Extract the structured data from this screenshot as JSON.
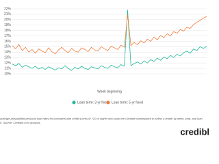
{
  "chart_data": {
    "type": "line",
    "x_label": "Week beginning",
    "categories": [
      null,
      null,
      null,
      null,
      null,
      null,
      null,
      null,
      null,
      null,
      null,
      null,
      null,
      null,
      null,
      null,
      null,
      null,
      null,
      null,
      null,
      null,
      null,
      null,
      null,
      null,
      null,
      null,
      null,
      null,
      null,
      null,
      null,
      null,
      null,
      null,
      null,
      null,
      null,
      null,
      null,
      null,
      null,
      null,
      null,
      null,
      null,
      null,
      null,
      null,
      null,
      null,
      null,
      null,
      null,
      null,
      null,
      null,
      null,
      null
    ],
    "series": [
      {
        "name": "Loan term: 3-yr fixed",
        "color": "#1fb89a",
        "values": [
          11.8,
          11.5,
          11.9,
          11.2,
          11.6,
          11.3,
          11.0,
          11.4,
          10.9,
          11.2,
          10.8,
          11.3,
          11.0,
          10.7,
          11.1,
          10.9,
          11.5,
          11.0,
          10.6,
          11.2,
          10.9,
          11.4,
          11.0,
          10.8,
          11.3,
          11.1,
          10.9,
          11.5,
          11.2,
          11.0,
          11.6,
          11.3,
          11.1,
          11.7,
          11.4,
          21.8,
          11.5,
          11.9,
          12.2,
          11.8,
          12.4,
          12.0,
          12.6,
          12.3,
          12.9,
          12.5,
          13.1,
          12.8,
          13.4,
          13.0,
          13.6,
          13.3,
          13.9,
          14.2,
          13.8,
          14.6,
          14.3,
          15.0,
          14.7,
          15.1
        ]
      },
      {
        "name": "Loan term: 5-yr fixed",
        "color": "#f07a3a",
        "values": [
          15.2,
          14.6,
          15.4,
          14.3,
          14.9,
          14.0,
          14.5,
          13.8,
          14.6,
          14.2,
          13.9,
          14.8,
          14.1,
          13.7,
          14.4,
          14.9,
          14.3,
          13.9,
          14.7,
          14.2,
          14.0,
          14.8,
          14.5,
          14.1,
          14.9,
          14.4,
          14.2,
          15.0,
          14.6,
          14.3,
          15.1,
          14.8,
          14.5,
          15.3,
          14.9,
          20.9,
          15.2,
          15.8,
          15.4,
          16.1,
          15.7,
          16.4,
          16.0,
          16.8,
          16.3,
          17.1,
          16.7,
          17.4,
          17.0,
          17.8,
          17.5,
          18.2,
          17.9,
          18.6,
          18.4,
          19.1,
          19.5,
          19.9,
          20.3,
          20.6
        ]
      }
    ],
    "ylim": [
      10,
      22
    ],
    "yticks": [
      {
        "value": 10,
        "label": "10%"
      },
      {
        "value": 11,
        "label": "11%"
      },
      {
        "value": 12,
        "label": "12%"
      },
      {
        "value": 13,
        "label": "13%"
      },
      {
        "value": 14,
        "label": "14%"
      },
      {
        "value": 15,
        "label": "15%"
      },
      {
        "value": 16,
        "label": "16%"
      },
      {
        "value": 17,
        "label": "17%"
      },
      {
        "value": 18,
        "label": "18%"
      },
      {
        "value": 19,
        "label": "19%"
      },
      {
        "value": 20,
        "label": "20%"
      },
      {
        "value": 21,
        "label": "21%"
      },
      {
        "value": 22,
        "label": "22%"
      }
    ],
    "grid": true
  },
  "caption": [
    "average prequalified personal loan rates for borrowers with credit scores of 720 or higher who used the Credible marketplace to select a lender by week, year, and loan",
    "e. Source: Credible.com analysis."
  ],
  "logo": "credibl"
}
